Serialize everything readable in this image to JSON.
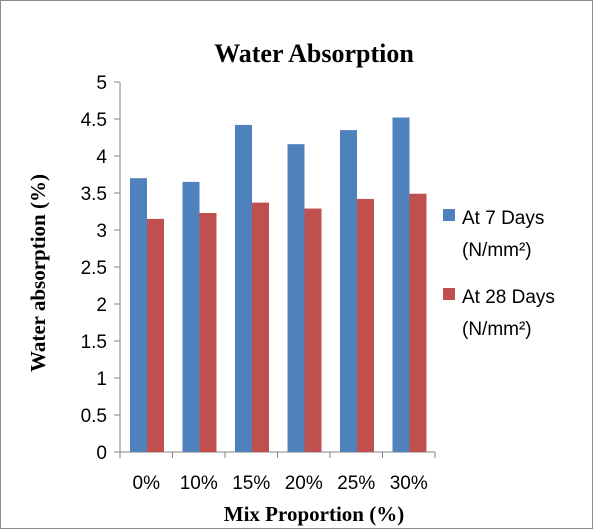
{
  "chart_data": {
    "type": "bar",
    "title": "Water Absorption",
    "xlabel": "Mix Proportion (%)",
    "ylabel": "Water absorption (%)",
    "categories": [
      "0%",
      "10%",
      "15%",
      "20%",
      "25%",
      "30%"
    ],
    "series": [
      {
        "name": "At 7 Days (N/mm²)",
        "name_lines": [
          "At 7 Days",
          "(N/mm²)"
        ],
        "color": "#4f81bd",
        "values": [
          3.7,
          3.65,
          4.42,
          4.16,
          4.35,
          4.52
        ]
      },
      {
        "name": "At 28 Days (N/mm²)",
        "name_lines": [
          "At 28 Days",
          "(N/mm²)"
        ],
        "color": "#c0504d",
        "values": [
          3.15,
          3.23,
          3.37,
          3.29,
          3.42,
          3.49
        ]
      }
    ],
    "ylim": [
      0,
      5
    ],
    "yticks": [
      "0",
      "0.5",
      "1",
      "1.5",
      "2",
      "2.5",
      "3",
      "3.5",
      "4",
      "4.5",
      "5"
    ],
    "grid": false,
    "legend_position": "right"
  }
}
